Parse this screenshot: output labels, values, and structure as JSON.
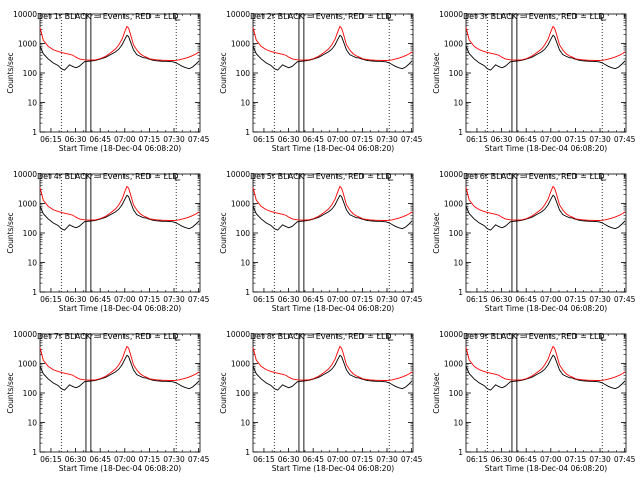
{
  "chart_data": [
    {
      "type": "line",
      "title": "Det 1r BLACK = Events, RED = LLD"
    },
    {
      "type": "line",
      "title": "Det 2r BLACK = Events, RED = LLD"
    },
    {
      "type": "line",
      "title": "Det 3r BLACK = Events, RED = LLD"
    },
    {
      "type": "line",
      "title": "Det 4r BLACK = Events, RED = LLD"
    },
    {
      "type": "line",
      "title": "Det 5r BLACK = Events, RED = LLD"
    },
    {
      "type": "line",
      "title": "Det 6r BLACK = Events, RED = LLD"
    },
    {
      "type": "line",
      "title": "Det 7r BLACK = Events, RED = LLD"
    },
    {
      "type": "line",
      "title": "Det 8r BLACK = Events, RED = LLD"
    },
    {
      "type": "line",
      "title": "Det 9r BLACK = Events, RED = LLD"
    }
  ],
  "shared": {
    "xlabel": "Start Time (18-Dec-04 06:08:20)",
    "ylabel": "Counts/sec",
    "x_ticks": [
      "06:15",
      "06:30",
      "06:45",
      "07:00",
      "07:15",
      "07:30",
      "07:45"
    ],
    "x_tick_minutes": [
      6.67,
      21.67,
      36.67,
      51.67,
      66.67,
      81.67,
      96.67
    ],
    "x_range_minutes": [
      0,
      97.5
    ],
    "y_scale": "log",
    "y_ticks": [
      "1",
      "10",
      "100",
      "1000",
      "10000"
    ],
    "y_range": [
      1,
      10000
    ],
    "dotted_vlines_minutes": [
      13,
      83
    ],
    "solid_vlines_minutes": [
      28,
      31
    ],
    "series": [
      {
        "name": "Events",
        "color": "#000000",
        "x": [
          0,
          2,
          5,
          8,
          11,
          13,
          15,
          18,
          20,
          22,
          24,
          27,
          29,
          31,
          34,
          37,
          40,
          43,
          46,
          48,
          50,
          52,
          53,
          54,
          55,
          56,
          57,
          59,
          61,
          63,
          65,
          66,
          67,
          69,
          71,
          73,
          75,
          77,
          79,
          81,
          83,
          85,
          87,
          89,
          91,
          93,
          95,
          97
        ],
        "values": [
          800,
          450,
          300,
          220,
          180,
          140,
          125,
          190,
          165,
          150,
          170,
          240,
          250,
          255,
          270,
          300,
          340,
          420,
          520,
          640,
          900,
          1500,
          1900,
          1700,
          1200,
          850,
          600,
          420,
          370,
          330,
          320,
          300,
          290,
          270,
          260,
          255,
          250,
          250,
          245,
          240,
          220,
          190,
          165,
          150,
          140,
          160,
          200,
          260
        ]
      },
      {
        "name": "LLD",
        "color": "#ff0000",
        "x": [
          0,
          2,
          5,
          8,
          11,
          13,
          15,
          18,
          20,
          22,
          24,
          27,
          29,
          31,
          34,
          37,
          40,
          43,
          46,
          48,
          50,
          52,
          53,
          54,
          55,
          56,
          57,
          59,
          61,
          63,
          65,
          66,
          67,
          69,
          71,
          73,
          75,
          77,
          79,
          81,
          83,
          85,
          87,
          89,
          91,
          93,
          95,
          97
        ],
        "values": [
          3500,
          1300,
          800,
          620,
          540,
          500,
          470,
          430,
          400,
          340,
          300,
          280,
          275,
          275,
          280,
          310,
          370,
          480,
          650,
          900,
          1400,
          2800,
          3800,
          3300,
          2200,
          1400,
          900,
          600,
          450,
          380,
          340,
          320,
          300,
          290,
          280,
          275,
          270,
          270,
          265,
          265,
          270,
          280,
          300,
          320,
          350,
          390,
          440,
          520
        ]
      }
    ]
  }
}
